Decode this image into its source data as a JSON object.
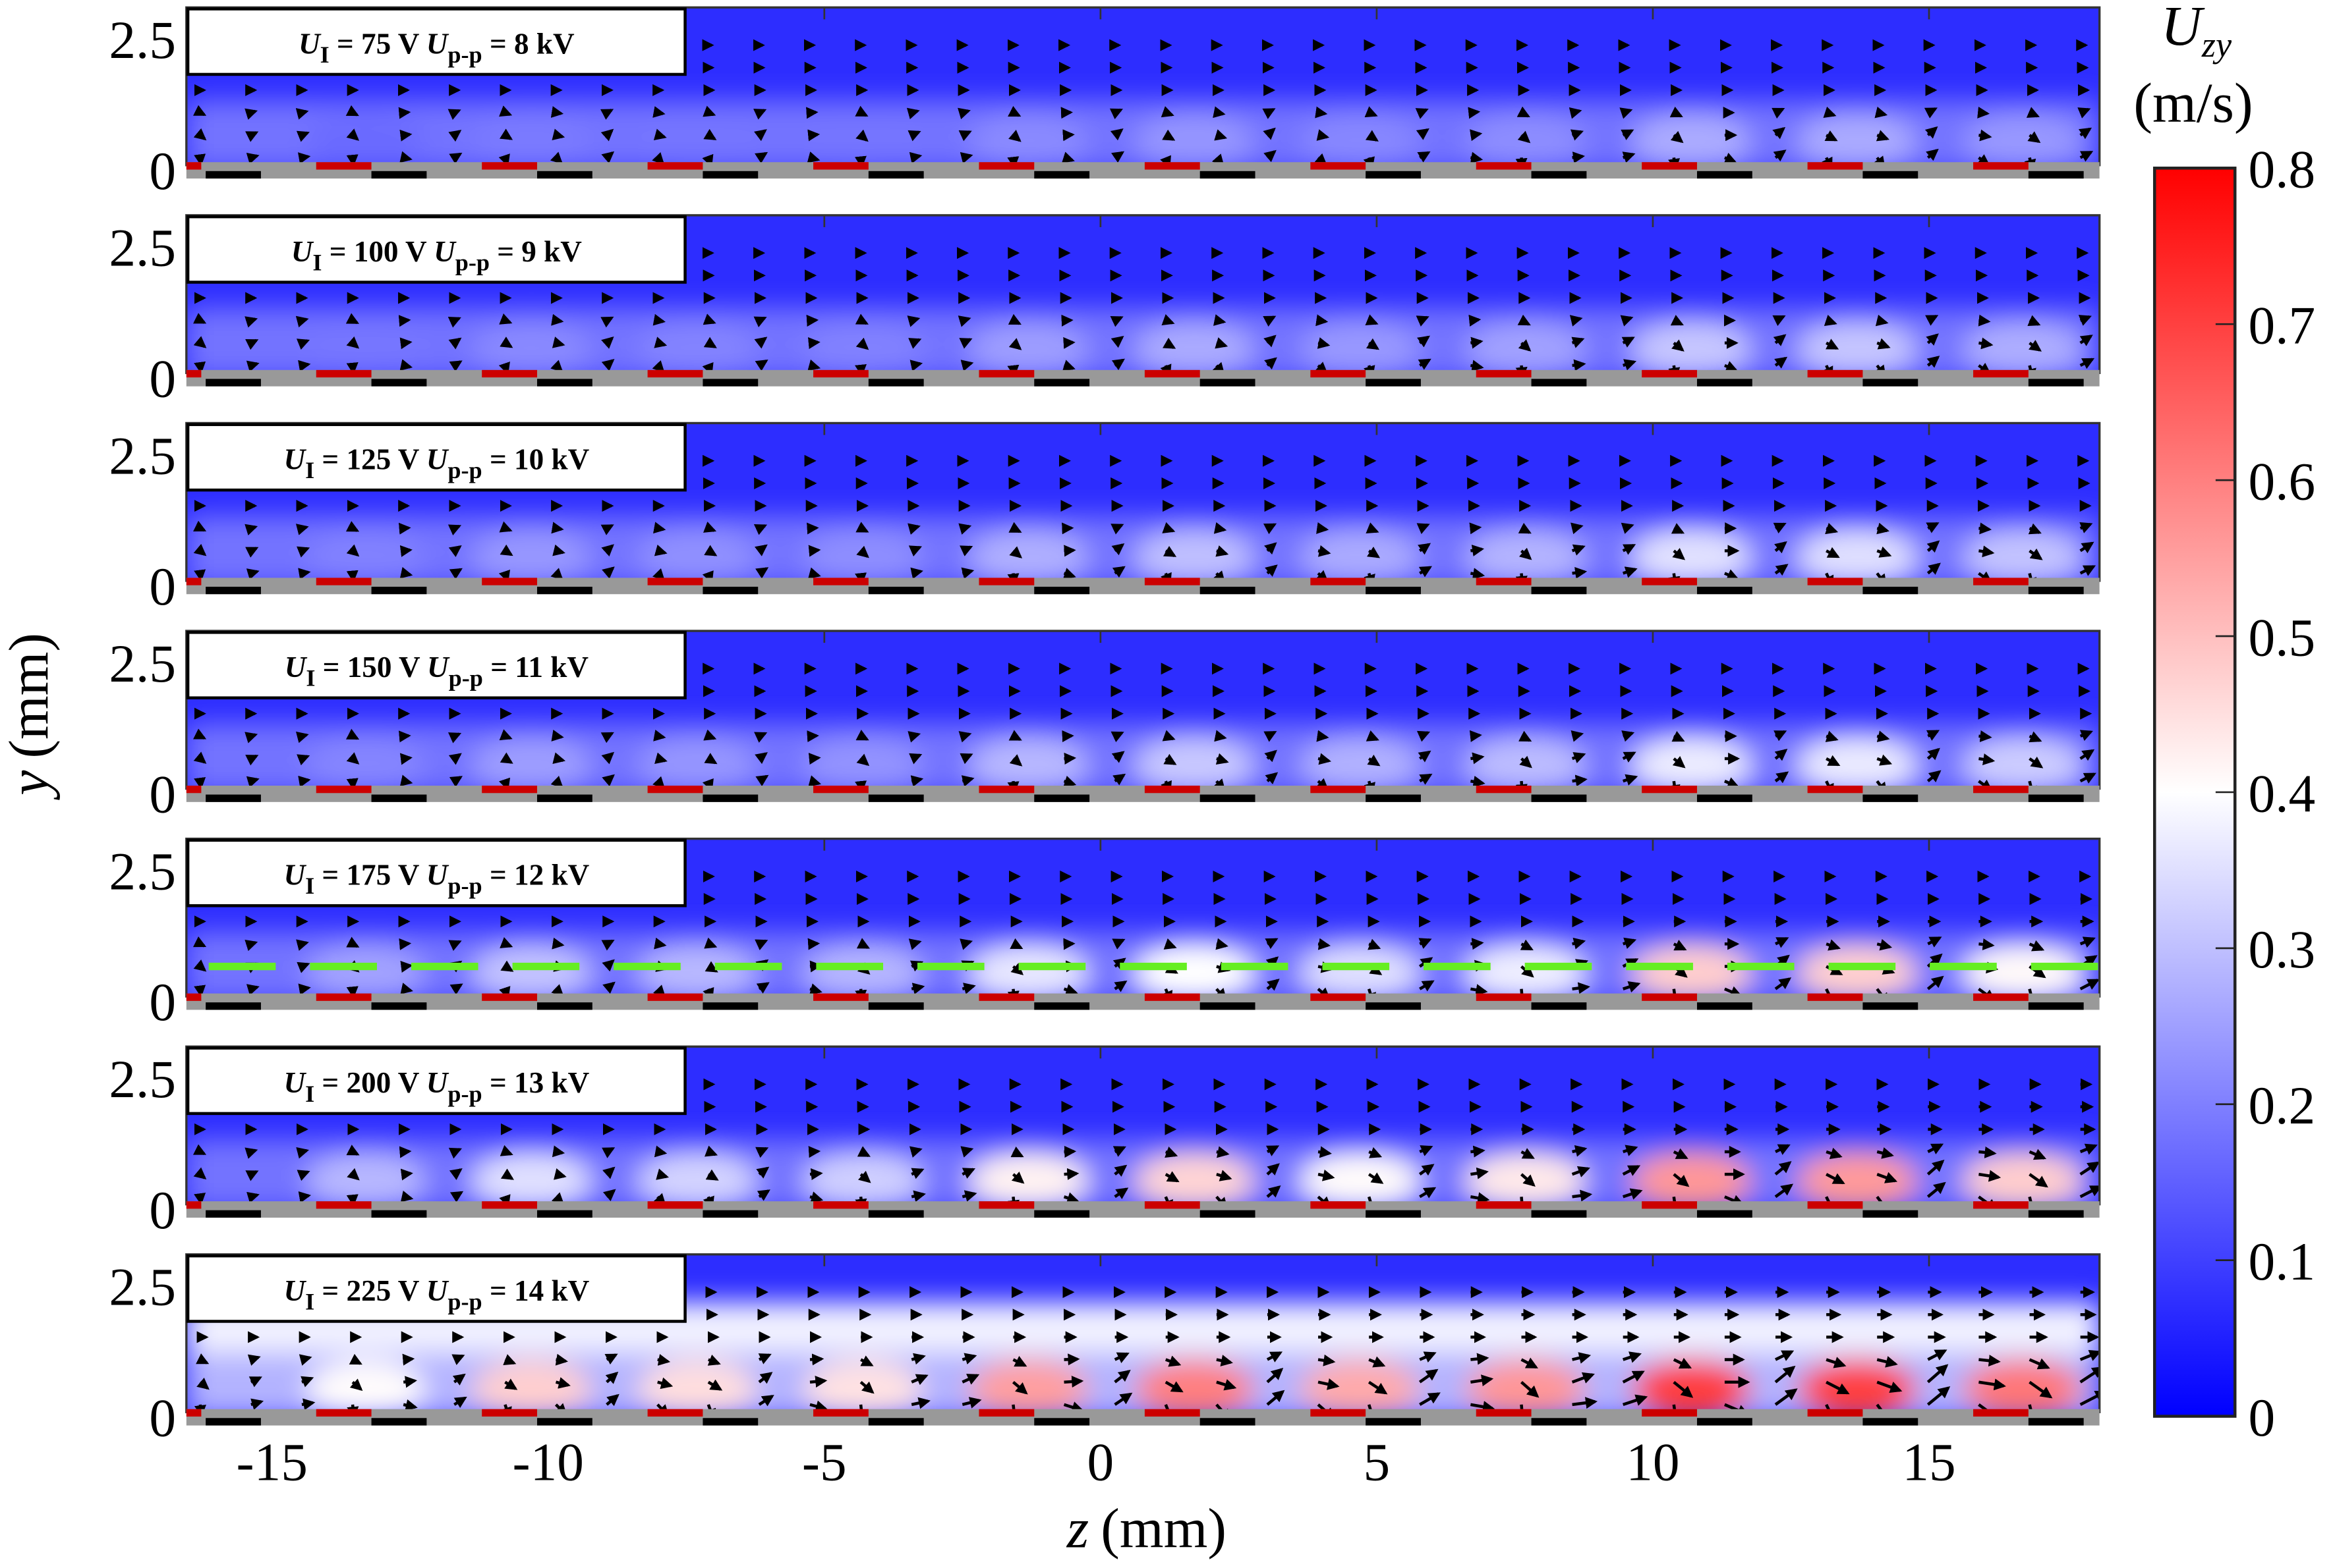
{
  "chart_data": {
    "type": "heatmap",
    "subtype": "vector-field-over-velocity-magnitude",
    "xlabel_var": "z",
    "xlabel_unit": "(mm)",
    "ylabel_var": "y",
    "ylabel_unit": "(mm)",
    "xlim": [
      -16.6,
      18.1
    ],
    "ylim": [
      0,
      2.8
    ],
    "xticks": [
      -15,
      -10,
      -5,
      0,
      5,
      10,
      15
    ],
    "xtick_labels": [
      "-15",
      "-10",
      "-5",
      "0",
      "5",
      "10",
      "15"
    ],
    "yticks": [
      0,
      2.5
    ],
    "ytick_labels": [
      "0",
      "2.5"
    ],
    "colorbar": {
      "title_var": "U",
      "title_sub": "zy",
      "unit": "(m/s)",
      "range": [
        0,
        0.8
      ],
      "ticks": [
        0,
        0.1,
        0.2,
        0.3,
        0.4,
        0.5,
        0.6,
        0.7,
        0.8
      ],
      "tick_labels": [
        "0",
        "0.1",
        "0.2",
        "0.3",
        "0.4",
        "0.5",
        "0.6",
        "0.7",
        "0.8"
      ],
      "colors": {
        "low": "#0000ff",
        "mid": "#ffffff",
        "high": "#ff0000"
      }
    },
    "panels": [
      {
        "ui": "75 V",
        "upp": "8 kV",
        "approx_velocity_range": [
          0.1,
          0.3
        ]
      },
      {
        "ui": "100 V",
        "upp": "9 kV",
        "approx_velocity_range": [
          0.1,
          0.35
        ]
      },
      {
        "ui": "125 V",
        "upp": "10 kV",
        "approx_velocity_range": [
          0.1,
          0.4
        ]
      },
      {
        "ui": "150 V",
        "upp": "11 kV",
        "approx_velocity_range": [
          0.1,
          0.42
        ]
      },
      {
        "ui": "175 V",
        "upp": "12 kV",
        "approx_velocity_range": [
          0.1,
          0.55
        ],
        "annotation": {
          "type": "dashed-line",
          "y": 0.6,
          "color": "#66ee22"
        }
      },
      {
        "ui": "200 V",
        "upp": "13 kV",
        "approx_velocity_range": [
          0.1,
          0.65
        ]
      },
      {
        "ui": "225 V",
        "upp": "14 kV",
        "approx_velocity_range": [
          0.2,
          0.8
        ]
      }
    ],
    "label_parts": {
      "u": "U",
      "sub_i": "I",
      "sub_pp": "p-p",
      "eq": " = "
    },
    "electrode_colors": {
      "exposed": "#cc0000",
      "encapsulated": "#000000",
      "dielectric": "#999999"
    }
  }
}
